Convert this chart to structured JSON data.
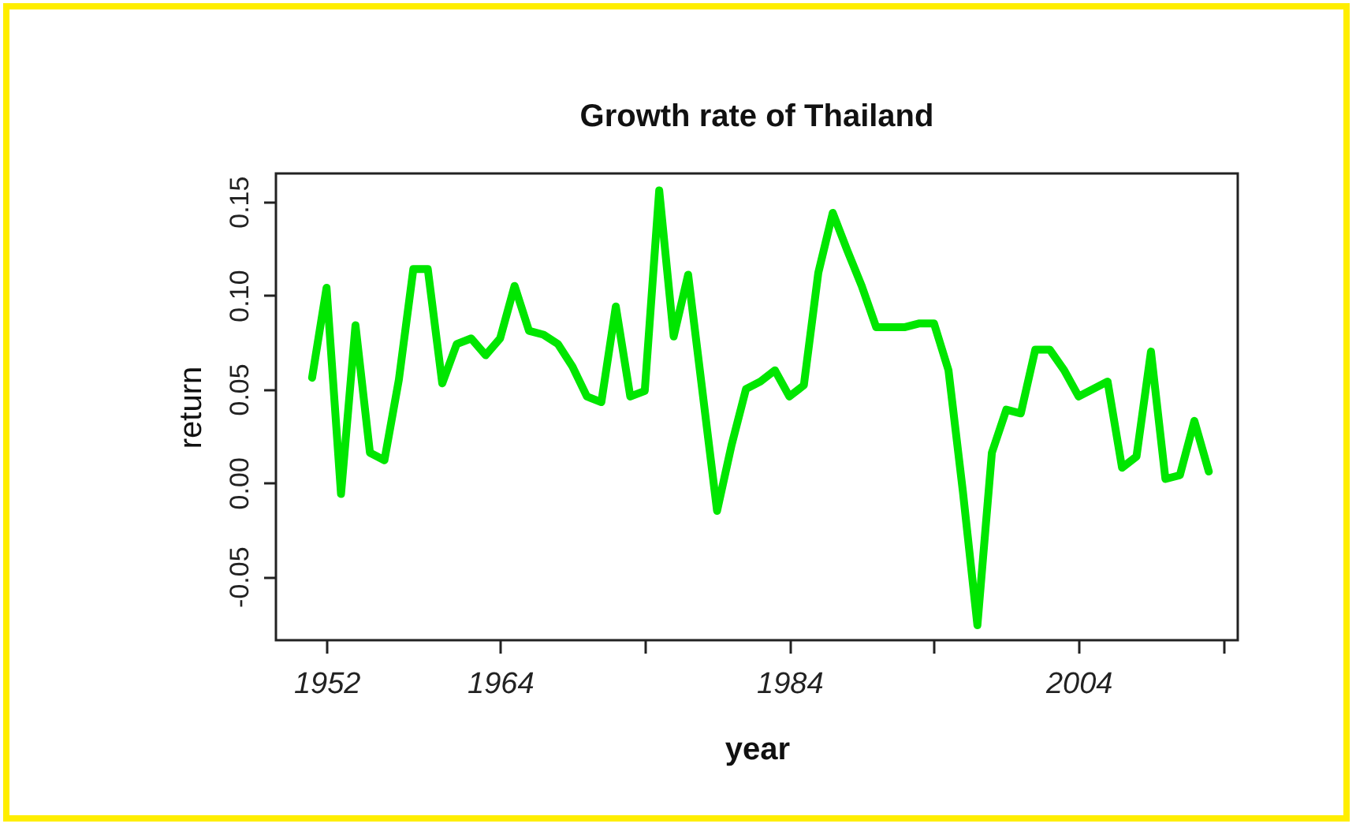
{
  "chart_data": {
    "type": "line",
    "title": "Growth rate of Thailand",
    "xlabel": "year",
    "ylabel": "return",
    "x": [
      1951,
      1952,
      1953,
      1954,
      1955,
      1956,
      1957,
      1958,
      1959,
      1960,
      1961,
      1962,
      1963,
      1964,
      1965,
      1966,
      1967,
      1968,
      1969,
      1970,
      1971,
      1972,
      1973,
      1974,
      1975,
      1976,
      1977,
      1978,
      1979,
      1980,
      1981,
      1982,
      1983,
      1984,
      1985,
      1986,
      1987,
      1988,
      1989,
      1990,
      1991,
      1992,
      1993,
      1994,
      1995,
      1996,
      1997,
      1998,
      1999,
      2000,
      2001,
      2002,
      2003,
      2004,
      2005,
      2006,
      2007,
      2008,
      2009,
      2010,
      2011,
      2012,
      2013
    ],
    "series": [
      {
        "color": "#00e600",
        "values": [
          0.056,
          0.104,
          -0.006,
          0.084,
          0.016,
          0.012,
          0.055,
          0.114,
          0.114,
          0.053,
          0.074,
          0.077,
          0.068,
          0.077,
          0.105,
          0.081,
          0.079,
          0.074,
          0.062,
          0.046,
          0.043,
          0.094,
          0.046,
          0.049,
          0.156,
          0.078,
          0.111,
          0.048,
          -0.015,
          0.02,
          0.05,
          0.054,
          0.06,
          0.046,
          0.052,
          0.112,
          0.144,
          0.124,
          0.105,
          0.083,
          0.083,
          0.083,
          0.085,
          0.085,
          0.06,
          -0.005,
          -0.076,
          0.016,
          0.039,
          0.037,
          0.071,
          0.071,
          0.06,
          0.046,
          0.05,
          0.054,
          0.008,
          0.014,
          0.07,
          0.002,
          0.004,
          0.033,
          0.006
        ]
      }
    ],
    "xlim": [
      1948.5,
      2015
    ],
    "xticks": [
      1952,
      1964,
      {
        "value": 1974,
        "label": null
      },
      1984,
      {
        "value": 1994,
        "label": null
      },
      2004,
      {
        "value": 2014,
        "label": null
      }
    ],
    "ylim": [
      -0.084,
      0.165
    ],
    "yticks": [
      {
        "value": -0.05,
        "label": "-0.05"
      },
      {
        "value": 0,
        "label": "0.00"
      },
      {
        "value": 0.05,
        "label": "0.05"
      },
      {
        "value": 0.1,
        "label": "0.10"
      },
      {
        "value": 0.15,
        "label": "0.15"
      }
    ],
    "grid": false,
    "legend": false,
    "marker": "none",
    "line_style": "solid"
  }
}
